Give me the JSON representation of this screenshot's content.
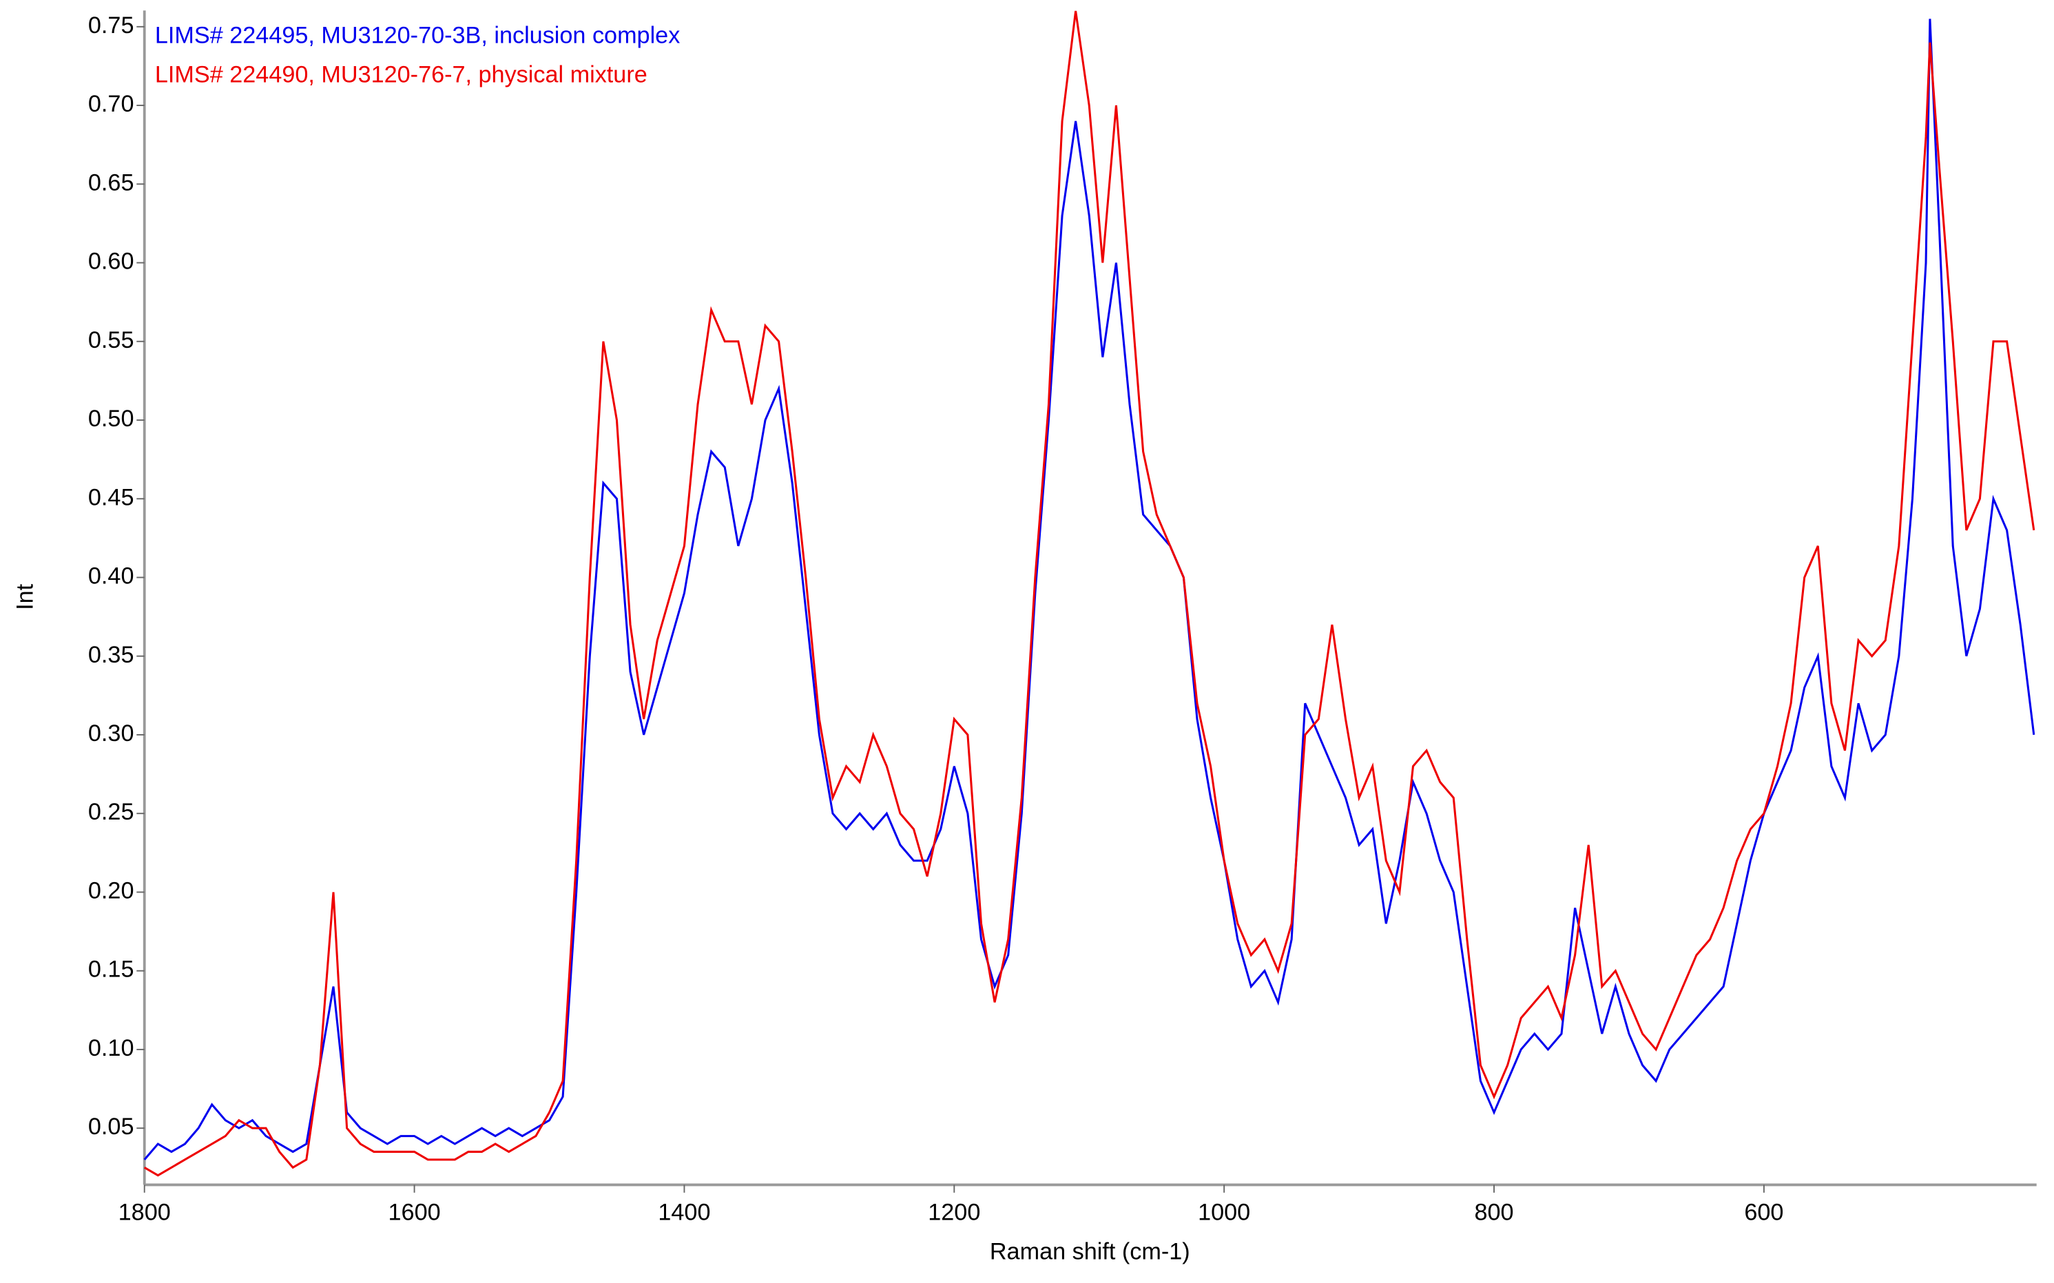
{
  "chart_data": {
    "type": "line",
    "xlabel": "Raman shift (cm-1)",
    "ylabel": "Int",
    "x": [
      1800,
      1790,
      1780,
      1770,
      1760,
      1750,
      1740,
      1730,
      1720,
      1710,
      1700,
      1690,
      1680,
      1670,
      1660,
      1650,
      1640,
      1630,
      1620,
      1610,
      1600,
      1590,
      1580,
      1570,
      1560,
      1550,
      1540,
      1530,
      1520,
      1510,
      1500,
      1490,
      1480,
      1470,
      1460,
      1450,
      1440,
      1430,
      1420,
      1410,
      1400,
      1390,
      1380,
      1370,
      1360,
      1350,
      1340,
      1330,
      1320,
      1310,
      1300,
      1290,
      1280,
      1270,
      1260,
      1250,
      1240,
      1230,
      1220,
      1210,
      1200,
      1190,
      1180,
      1170,
      1160,
      1150,
      1140,
      1130,
      1120,
      1110,
      1100,
      1090,
      1080,
      1070,
      1060,
      1050,
      1040,
      1030,
      1020,
      1010,
      1000,
      990,
      980,
      970,
      960,
      950,
      940,
      930,
      920,
      910,
      900,
      890,
      880,
      870,
      860,
      850,
      840,
      830,
      820,
      810,
      800,
      790,
      780,
      770,
      760,
      750,
      740,
      730,
      720,
      710,
      700,
      690,
      680,
      670,
      660,
      650,
      640,
      630,
      620,
      610,
      600,
      590,
      580,
      570,
      560,
      550,
      540,
      530,
      520,
      510,
      500,
      490,
      480,
      477,
      470,
      460,
      450,
      440,
      430,
      420,
      410,
      400
    ],
    "series": [
      {
        "name": "LIMS# 224495, MU3120-70-3B, inclusion complex",
        "color": "#0000ee",
        "values": [
          0.03,
          0.04,
          0.035,
          0.04,
          0.05,
          0.065,
          0.055,
          0.05,
          0.055,
          0.045,
          0.04,
          0.035,
          0.04,
          0.09,
          0.14,
          0.06,
          0.05,
          0.045,
          0.04,
          0.045,
          0.045,
          0.04,
          0.045,
          0.04,
          0.045,
          0.05,
          0.045,
          0.05,
          0.045,
          0.05,
          0.055,
          0.07,
          0.2,
          0.35,
          0.46,
          0.45,
          0.34,
          0.3,
          0.33,
          0.36,
          0.39,
          0.44,
          0.48,
          0.47,
          0.42,
          0.45,
          0.5,
          0.52,
          0.46,
          0.38,
          0.3,
          0.25,
          0.24,
          0.25,
          0.24,
          0.25,
          0.23,
          0.22,
          0.22,
          0.24,
          0.28,
          0.25,
          0.17,
          0.14,
          0.16,
          0.25,
          0.39,
          0.5,
          0.63,
          0.69,
          0.63,
          0.54,
          0.6,
          0.51,
          0.44,
          0.43,
          0.42,
          0.4,
          0.31,
          0.26,
          0.22,
          0.17,
          0.14,
          0.15,
          0.13,
          0.17,
          0.32,
          0.3,
          0.28,
          0.26,
          0.23,
          0.24,
          0.18,
          0.22,
          0.27,
          0.25,
          0.22,
          0.2,
          0.14,
          0.08,
          0.06,
          0.08,
          0.1,
          0.11,
          0.1,
          0.11,
          0.19,
          0.15,
          0.11,
          0.14,
          0.11,
          0.09,
          0.08,
          0.1,
          0.11,
          0.12,
          0.13,
          0.14,
          0.18,
          0.22,
          0.25,
          0.27,
          0.29,
          0.33,
          0.35,
          0.28,
          0.26,
          0.32,
          0.29,
          0.3,
          0.35,
          0.45,
          0.6,
          0.755,
          0.62,
          0.42,
          0.35,
          0.38,
          0.45,
          0.43,
          0.37,
          0.3
        ]
      },
      {
        "name": "LIMS# 224490, MU3120-76-7, physical mixture",
        "color": "#ee0000",
        "values": [
          0.025,
          0.02,
          0.025,
          0.03,
          0.035,
          0.04,
          0.045,
          0.055,
          0.05,
          0.05,
          0.035,
          0.025,
          0.03,
          0.09,
          0.2,
          0.05,
          0.04,
          0.035,
          0.035,
          0.035,
          0.035,
          0.03,
          0.03,
          0.03,
          0.035,
          0.035,
          0.04,
          0.035,
          0.04,
          0.045,
          0.06,
          0.08,
          0.22,
          0.4,
          0.55,
          0.5,
          0.37,
          0.31,
          0.36,
          0.39,
          0.42,
          0.51,
          0.57,
          0.55,
          0.55,
          0.51,
          0.56,
          0.55,
          0.48,
          0.4,
          0.31,
          0.26,
          0.28,
          0.27,
          0.3,
          0.28,
          0.25,
          0.24,
          0.21,
          0.25,
          0.31,
          0.3,
          0.18,
          0.13,
          0.17,
          0.26,
          0.4,
          0.51,
          0.69,
          0.76,
          0.7,
          0.6,
          0.7,
          0.59,
          0.48,
          0.44,
          0.42,
          0.4,
          0.32,
          0.28,
          0.22,
          0.18,
          0.16,
          0.17,
          0.15,
          0.18,
          0.3,
          0.31,
          0.37,
          0.31,
          0.26,
          0.28,
          0.22,
          0.2,
          0.28,
          0.29,
          0.27,
          0.26,
          0.17,
          0.09,
          0.07,
          0.09,
          0.12,
          0.13,
          0.14,
          0.12,
          0.16,
          0.23,
          0.14,
          0.15,
          0.13,
          0.11,
          0.1,
          0.12,
          0.14,
          0.16,
          0.17,
          0.19,
          0.22,
          0.24,
          0.25,
          0.28,
          0.32,
          0.4,
          0.42,
          0.32,
          0.29,
          0.36,
          0.35,
          0.36,
          0.42,
          0.55,
          0.68,
          0.74,
          0.66,
          0.55,
          0.43,
          0.45,
          0.55,
          0.55,
          0.49,
          0.43
        ]
      }
    ],
    "xlim": [
      1800,
      398
    ],
    "ylim": [
      0.014,
      0.757
    ],
    "xticks": [
      1800,
      1600,
      1400,
      1200,
      1000,
      800,
      600
    ],
    "yticks": [
      0.05,
      {
        "value": 0.1,
        "label": "0.10"
      },
      0.15,
      {
        "value": 0.2,
        "label": "0.20"
      },
      0.25,
      {
        "value": 0.3,
        "label": "0.30"
      },
      0.35,
      {
        "value": 0.4,
        "label": "0.40"
      },
      0.45,
      {
        "value": 0.5,
        "label": "0.50"
      },
      0.55,
      {
        "value": 0.6,
        "label": "0.60"
      },
      0.65,
      {
        "value": 0.7,
        "label": "0.70"
      },
      0.75
    ],
    "legend": "top-left",
    "grid": false
  }
}
